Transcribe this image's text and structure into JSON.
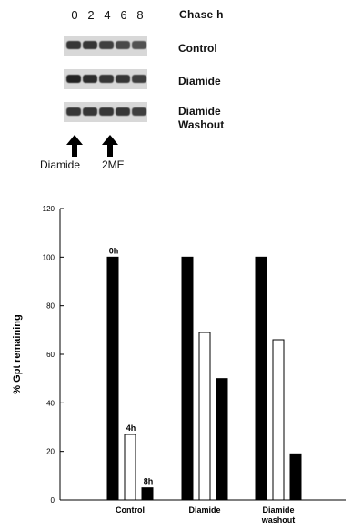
{
  "blot": {
    "lanes": [
      "0",
      "2",
      "4",
      "6",
      "8"
    ],
    "chase_label": "Chase  h",
    "rows": [
      {
        "label": "Control",
        "intensities": [
          0.85,
          0.85,
          0.8,
          0.75,
          0.7
        ]
      },
      {
        "label": "Diamide",
        "intensities": [
          0.95,
          0.9,
          0.85,
          0.85,
          0.8
        ]
      },
      {
        "label": "Diamide Washout",
        "intensities": [
          0.85,
          0.85,
          0.85,
          0.85,
          0.8
        ]
      }
    ],
    "arrow_labels": [
      "Diamide",
      "2ME"
    ]
  },
  "chart_data": {
    "type": "bar",
    "categories": [
      "Control",
      "Diamide",
      "Diamide washout"
    ],
    "series": [
      {
        "values": [
          100,
          100,
          100
        ],
        "color": "#000000"
      },
      {
        "values": [
          27,
          69,
          66
        ],
        "color": "#ffffff"
      },
      {
        "values": [
          5,
          50,
          19
        ],
        "color": "#000000"
      }
    ],
    "ylabel": "% Gpt remaining",
    "ylim": [
      0,
      120
    ],
    "yticks": [
      "0",
      "20",
      "40",
      "60",
      "80",
      "100",
      "120"
    ],
    "annotations": [
      {
        "text": "0h",
        "category": 0,
        "series": 0
      },
      {
        "text": "4h",
        "category": 0,
        "series": 1
      },
      {
        "text": "8h",
        "category": 0,
        "series": 2
      }
    ],
    "grid": false,
    "legend": "none"
  }
}
